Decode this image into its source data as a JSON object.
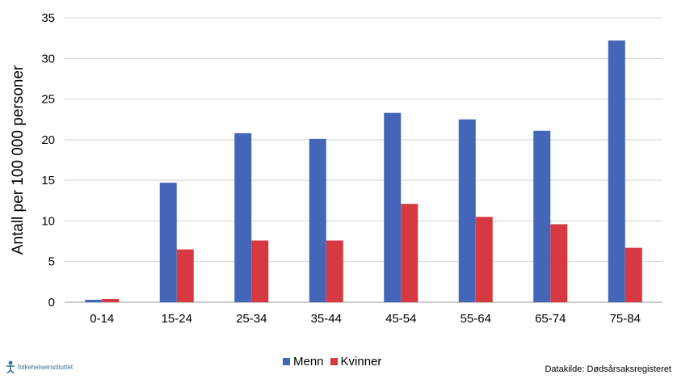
{
  "chart_data": {
    "type": "bar",
    "title": "",
    "xlabel": "",
    "ylabel": "Antall per 100 000 personer",
    "ylim": [
      0,
      35
    ],
    "yticks": [
      0,
      5,
      10,
      15,
      20,
      25,
      30,
      35
    ],
    "grid": true,
    "legend_position": "bottom",
    "categories": [
      "0-14",
      "15-24",
      "25-34",
      "35-44",
      "45-54",
      "55-64",
      "65-74",
      "75-84"
    ],
    "series": [
      {
        "name": "Menn",
        "color": "#4466b8",
        "values": [
          0.3,
          14.7,
          20.8,
          20.1,
          23.3,
          22.5,
          21.1,
          32.2
        ]
      },
      {
        "name": "Kvinner",
        "color": "#d63a40",
        "values": [
          0.4,
          6.5,
          7.6,
          7.6,
          12.1,
          10.5,
          9.6,
          6.7
        ]
      }
    ]
  },
  "logo": {
    "text": "folkehelseinstituttet",
    "icon": "person-icon"
  },
  "source": "Datakilde: Dødsårsaksregisteret"
}
